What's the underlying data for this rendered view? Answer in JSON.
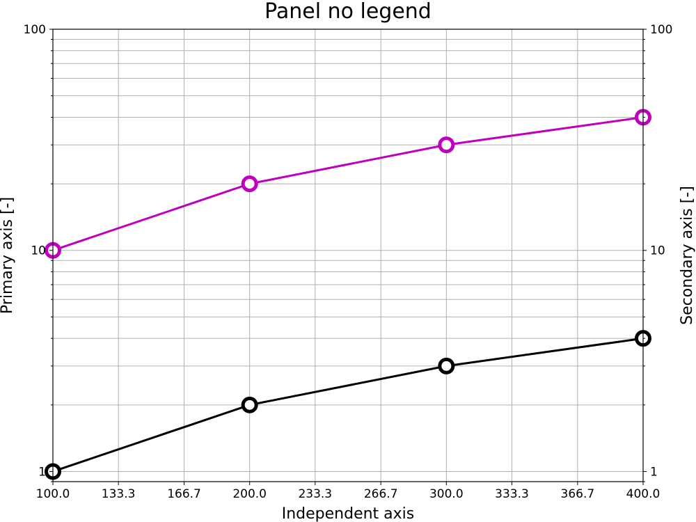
{
  "chart_data": {
    "type": "line",
    "title": "Panel no legend",
    "xlabel": "Independent axis",
    "ylabel": "Primary axis [-]",
    "y2label": "Secondary axis [-]",
    "xlim": [
      100,
      400
    ],
    "ylim": [
      0.9,
      100
    ],
    "y2lim": [
      0.9,
      100
    ],
    "yscale": "log",
    "y2scale": "log",
    "grid": true,
    "legend": "none",
    "x_ticks": [
      "100.0",
      "133.3",
      "166.7",
      "200.0",
      "233.3",
      "266.7",
      "300.0",
      "333.3",
      "366.7",
      "400.0"
    ],
    "y_ticks": [
      "1",
      "10",
      "100"
    ],
    "y2_ticks": [
      "1",
      "10",
      "100"
    ],
    "series": [
      {
        "axis": "primary",
        "color": "#000000",
        "marker": "open-circle",
        "x": [
          100,
          200,
          300,
          400
        ],
        "values": [
          1,
          2,
          3,
          4
        ]
      },
      {
        "axis": "secondary",
        "color": "#bf00bf",
        "marker": "open-circle",
        "x": [
          100,
          200,
          300,
          400
        ],
        "values": [
          10,
          20,
          30,
          40
        ]
      }
    ]
  }
}
